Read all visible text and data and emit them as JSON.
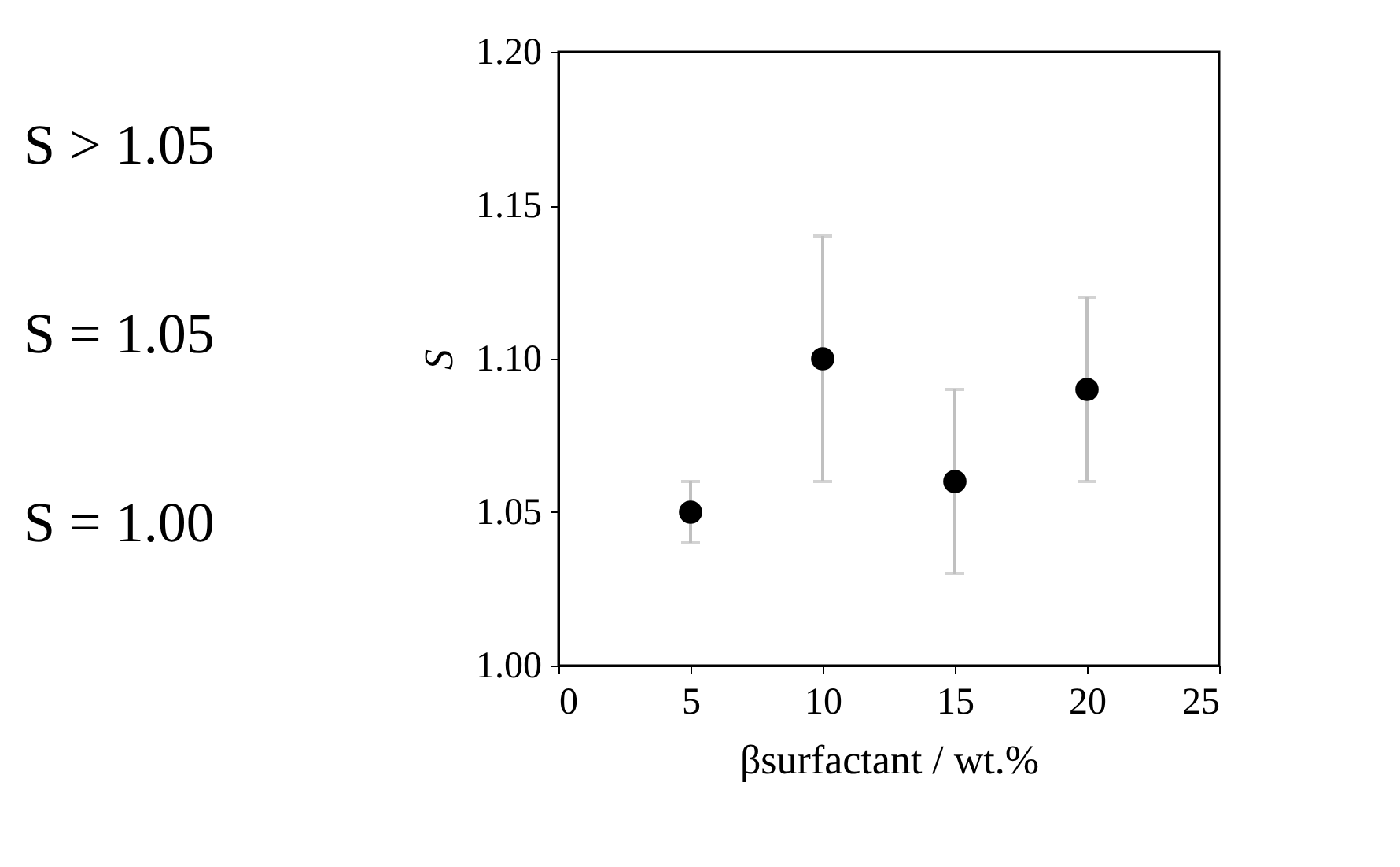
{
  "chart_data": {
    "type": "scatter",
    "xlabel": "βsurfactant / wt.%",
    "ylabel": "S",
    "x": [
      5,
      10,
      15,
      20
    ],
    "series": [
      {
        "color": "#000000",
        "values": [
          1.05,
          1.1,
          1.06,
          1.09
        ],
        "errors": [
          [
            1.04,
            1.06
          ],
          [
            1.06,
            1.14
          ],
          [
            1.03,
            1.09
          ],
          [
            1.06,
            1.12
          ]
        ]
      }
    ],
    "xlim": [
      0,
      25
    ],
    "xticks": [
      0,
      5,
      10,
      15,
      20,
      25
    ],
    "ylim": [
      1.0,
      1.2
    ],
    "yticks": [
      {
        "value": 1.0,
        "label": "1.00"
      },
      {
        "value": 1.05,
        "label": "1.05"
      },
      {
        "value": 1.1,
        "label": "1.10"
      },
      {
        "value": 1.15,
        "label": "1.15"
      },
      {
        "value": 1.2,
        "label": "1.20"
      }
    ],
    "annotations": [
      "S > 1.05",
      "S = 1.05",
      "S = 1.00"
    ],
    "marker": "circle",
    "grid": false
  }
}
